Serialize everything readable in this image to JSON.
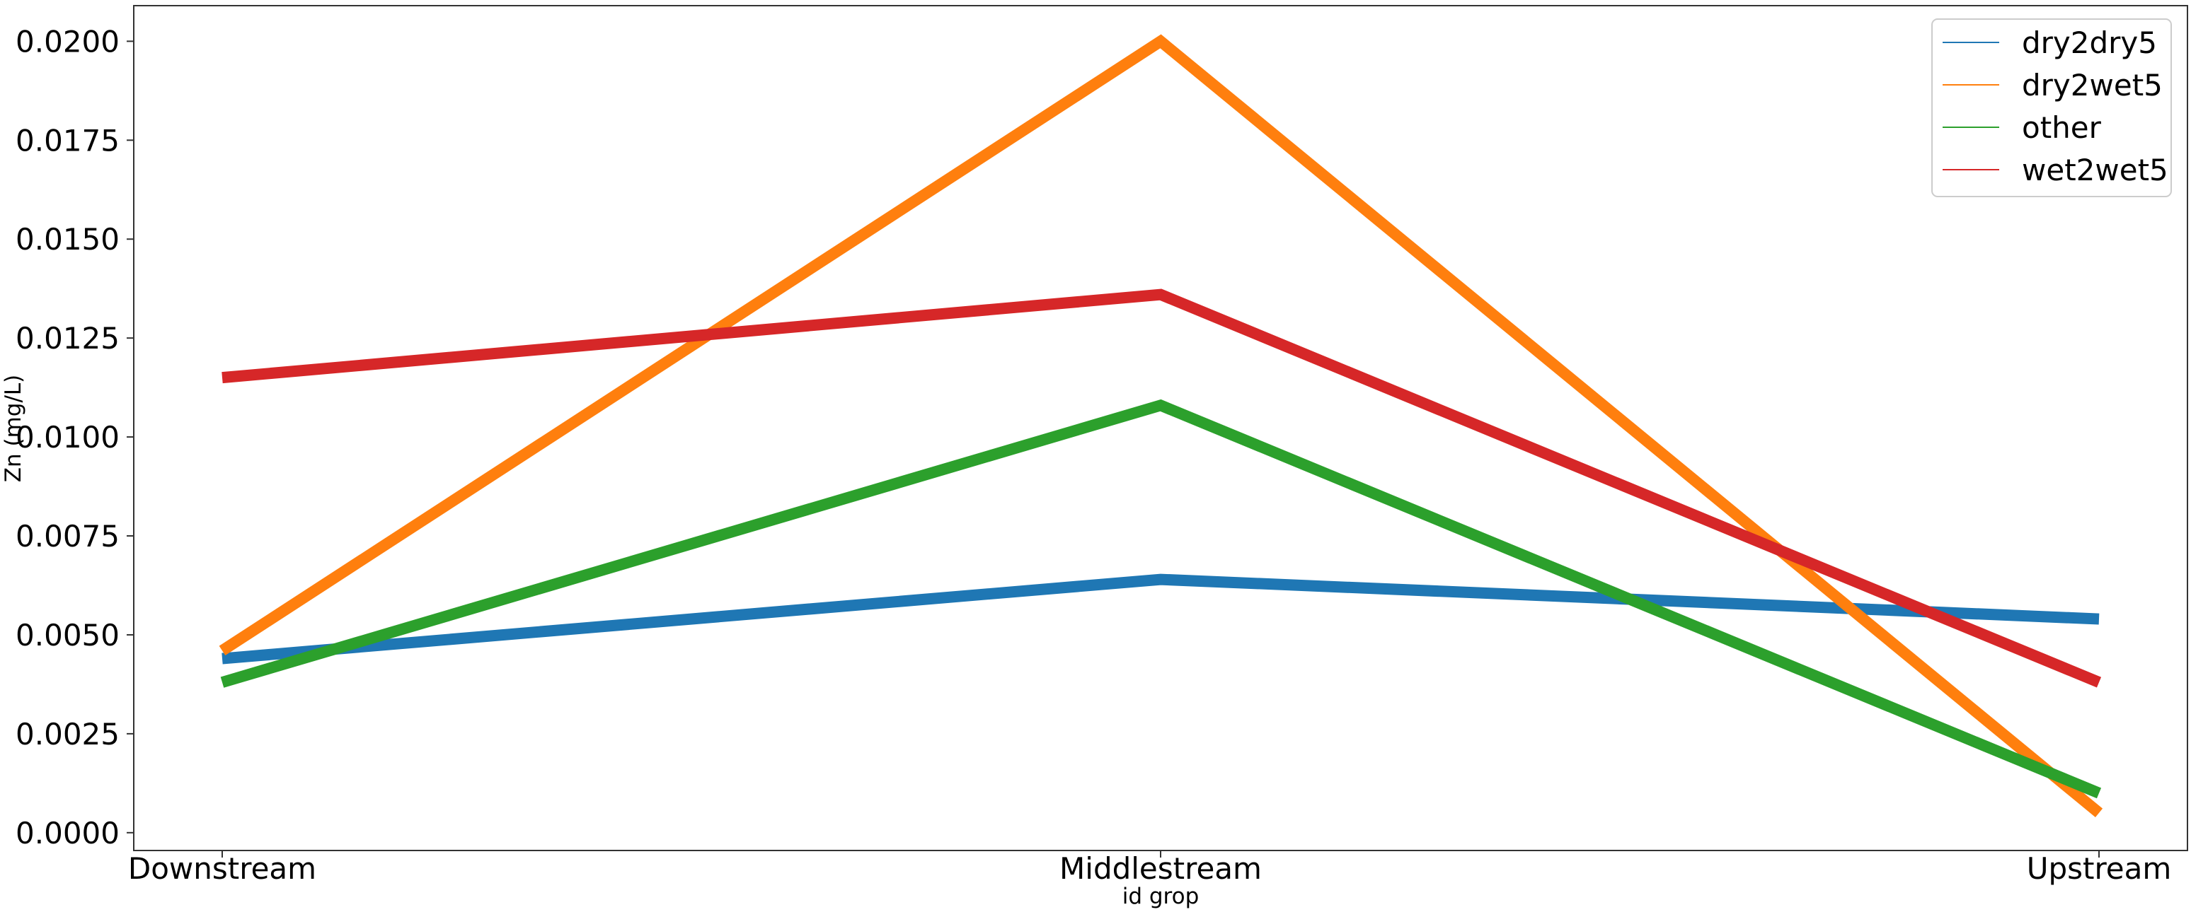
{
  "chart_data": {
    "type": "line",
    "xlabel": "id grop",
    "ylabel": "Zn (mg/L)",
    "categories": [
      "Downstream",
      "Middlestream",
      "Upstream"
    ],
    "ylim": [
      -0.00045,
      0.0209
    ],
    "yticks": [
      "0.0000",
      "0.0025",
      "0.0050",
      "0.0075",
      "0.0100",
      "0.0125",
      "0.0150",
      "0.0175",
      "0.0200"
    ],
    "yticks_values": [
      0,
      0.0025,
      0.005,
      0.0075,
      0.01,
      0.0125,
      0.015,
      0.0175,
      0.02
    ],
    "grid": false,
    "legend_position": "top-right",
    "series": [
      {
        "name": "dry2dry5",
        "color": "#1f77b4",
        "values": [
          0.0044,
          0.0064,
          0.0054
        ]
      },
      {
        "name": "dry2wet5",
        "color": "#ff7f0e",
        "values": [
          0.0046,
          0.02,
          0.0005
        ]
      },
      {
        "name": "other",
        "color": "#2ca02c",
        "values": [
          0.0038,
          0.0108,
          0.001
        ]
      },
      {
        "name": "wet2wet5",
        "color": "#d62728",
        "values": [
          0.0115,
          0.0136,
          0.0038
        ]
      }
    ]
  }
}
